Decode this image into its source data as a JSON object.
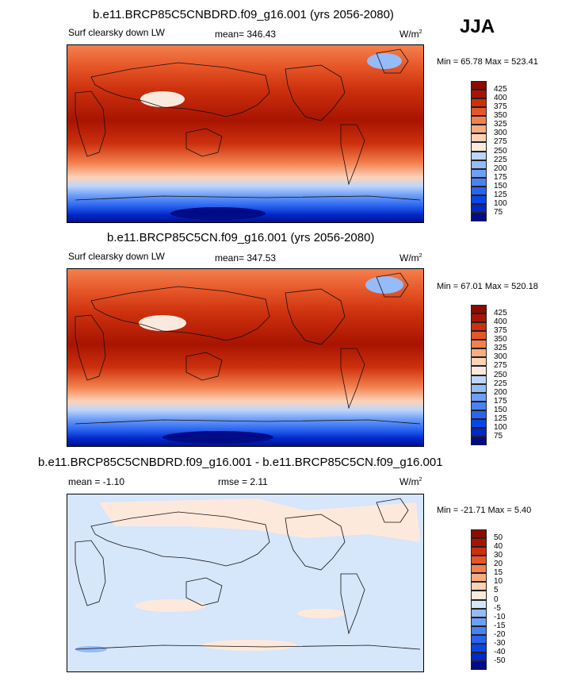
{
  "season": "JJA",
  "panels": [
    {
      "title": "b.e11.BRCP85C5CNBDRD.f09_g16.001 (yrs 2056-2080)",
      "left_label": "Surf clearsky down LW",
      "center_label": "mean= 346.43",
      "units": "W/m",
      "units_sup": "2",
      "minmax": "Min =  65.78 Max = 523.41"
    },
    {
      "title": "b.e11.BRCP85C5CN.f09_g16.001 (yrs 2056-2080)",
      "left_label": "Surf clearsky down LW",
      "center_label": "mean= 347.53",
      "units": "W/m",
      "units_sup": "2",
      "minmax": "Min =  67.01 Max = 520.18"
    },
    {
      "title": "b.e11.BRCP85C5CNBDRD.f09_g16.001 - b.e11.BRCP85C5CN.f09_g16.001",
      "left_label": "mean =  -1.10",
      "center_label": "rmse =   2.11",
      "units": "W/m",
      "units_sup": "2",
      "minmax": "Min = -21.71 Max =   5.40"
    }
  ],
  "chart_data": [
    {
      "type": "heatmap",
      "title": "b.e11.BRCP85C5CNBDRD.f09_g16.001 (yrs 2056-2080)",
      "variable": "Surf clearsky down LW",
      "units": "W/m2",
      "mean": 346.43,
      "min": 65.78,
      "max": 523.41,
      "colorbar_levels": [
        75,
        100,
        125,
        150,
        175,
        200,
        225,
        250,
        275,
        300,
        325,
        350,
        375,
        400,
        425
      ],
      "colorbar_colors": [
        "#000c87",
        "#0027c8",
        "#0a46e6",
        "#2a64f0",
        "#4a82f5",
        "#6e9ff7",
        "#95bbf9",
        "#bdd6fb",
        "#fbe9dd",
        "#fcd2b8",
        "#f9ac82",
        "#f3814f",
        "#e65628",
        "#cc300d",
        "#a81402",
        "#8a0b00"
      ]
    },
    {
      "type": "heatmap",
      "title": "b.e11.BRCP85C5CN.f09_g16.001 (yrs 2056-2080)",
      "variable": "Surf clearsky down LW",
      "units": "W/m2",
      "mean": 347.53,
      "min": 67.01,
      "max": 520.18,
      "colorbar_levels": [
        75,
        100,
        125,
        150,
        175,
        200,
        225,
        250,
        275,
        300,
        325,
        350,
        375,
        400,
        425
      ],
      "colorbar_colors": [
        "#000c87",
        "#0027c8",
        "#0a46e6",
        "#2a64f0",
        "#4a82f5",
        "#6e9ff7",
        "#95bbf9",
        "#bdd6fb",
        "#fbe9dd",
        "#fcd2b8",
        "#f9ac82",
        "#f3814f",
        "#e65628",
        "#cc300d",
        "#a81402",
        "#8a0b00"
      ]
    },
    {
      "type": "heatmap",
      "title": "b.e11.BRCP85C5CNBDRD.f09_g16.001 - b.e11.BRCP85C5CN.f09_g16.001",
      "units": "W/m2",
      "mean": -1.1,
      "rmse": 2.11,
      "min": -21.71,
      "max": 5.4,
      "colorbar_levels": [
        -50,
        -40,
        -30,
        -20,
        -15,
        -10,
        -5,
        0,
        5,
        10,
        15,
        20,
        30,
        40,
        50
      ],
      "colorbar_colors": [
        "#000c87",
        "#0027c8",
        "#0a46e6",
        "#2a64f0",
        "#4a82f5",
        "#6e9ff7",
        "#95bbf9",
        "#d6e6fb",
        "#fde9dc",
        "#fcd2b8",
        "#f9ac82",
        "#f3814f",
        "#e65628",
        "#cc300d",
        "#a81402",
        "#8a0b00"
      ]
    }
  ]
}
